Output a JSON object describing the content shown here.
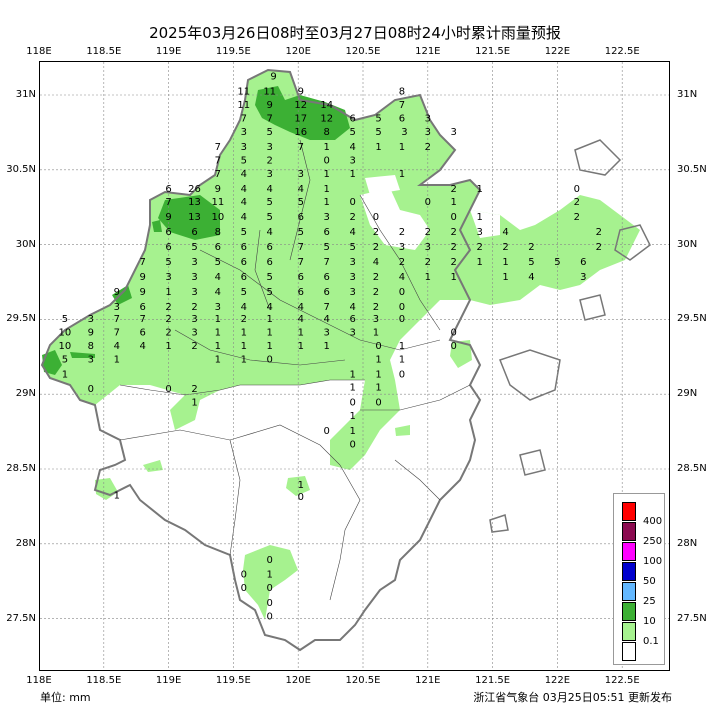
{
  "title": "2025年03月26日08时至03月27日08时24小时累计雨量预报",
  "unit": "单位: mm",
  "issuer": "浙江省气象台 03月25日05:51 更新发布",
  "axes": {
    "top_lon": [
      "118E",
      "118.5E",
      "119E",
      "119.5E",
      "120E",
      "120.5E",
      "121E",
      "121.5E",
      "122E",
      "122.5E"
    ],
    "bottom_lon": [
      "118E",
      "118.5E",
      "119E",
      "119.5E",
      "120E",
      "120.5E",
      "121E",
      "121.5E",
      "122E",
      "122.5E"
    ],
    "lat_left": [
      "31N",
      "30.5N",
      "30N",
      "29.5N",
      "29N",
      "28.5N",
      "28N",
      "27.5N"
    ],
    "lat_right": [
      "31N",
      "30.5N",
      "30N",
      "29.5N",
      "29N",
      "28.5N",
      "28N",
      "27.5N"
    ]
  },
  "legend": [
    {
      "label": "400",
      "color": "#ff0000"
    },
    {
      "label": "250",
      "color": "#8b0a50"
    },
    {
      "label": "100",
      "color": "#ff00ff"
    },
    {
      "label": "50",
      "color": "#0000cd"
    },
    {
      "label": "25",
      "color": "#63b8ff"
    },
    {
      "label": "10",
      "color": "#3cb034"
    },
    {
      "label": "0.1",
      "color": "#a6f28f"
    },
    {
      "label": "",
      "color": "#ffffff"
    }
  ],
  "stations": [
    {
      "lon": 119.81,
      "lat": 31.13,
      "v": "9"
    },
    {
      "lon": 119.58,
      "lat": 31.03,
      "v": "11"
    },
    {
      "lon": 119.78,
      "lat": 31.03,
      "v": "11"
    },
    {
      "lon": 120.02,
      "lat": 31.03,
      "v": "9"
    },
    {
      "lon": 119.58,
      "lat": 30.94,
      "v": "11"
    },
    {
      "lon": 119.78,
      "lat": 30.94,
      "v": "9"
    },
    {
      "lon": 120.02,
      "lat": 30.94,
      "v": "12"
    },
    {
      "lon": 120.22,
      "lat": 30.94,
      "v": "14"
    },
    {
      "lon": 119.58,
      "lat": 30.85,
      "v": "7"
    },
    {
      "lon": 119.78,
      "lat": 30.85,
      "v": "7"
    },
    {
      "lon": 120.02,
      "lat": 30.85,
      "v": "17"
    },
    {
      "lon": 120.22,
      "lat": 30.85,
      "v": "12"
    },
    {
      "lon": 120.42,
      "lat": 30.85,
      "v": "6"
    },
    {
      "lon": 120.62,
      "lat": 30.85,
      "v": "5"
    },
    {
      "lon": 119.58,
      "lat": 30.76,
      "v": "3"
    },
    {
      "lon": 119.78,
      "lat": 30.76,
      "v": "5"
    },
    {
      "lon": 120.02,
      "lat": 30.76,
      "v": "16"
    },
    {
      "lon": 120.22,
      "lat": 30.76,
      "v": "8"
    },
    {
      "lon": 120.42,
      "lat": 30.76,
      "v": "5"
    },
    {
      "lon": 120.62,
      "lat": 30.76,
      "v": "5"
    },
    {
      "lon": 119.38,
      "lat": 30.66,
      "v": "7"
    },
    {
      "lon": 119.58,
      "lat": 30.66,
      "v": "3"
    },
    {
      "lon": 119.78,
      "lat": 30.66,
      "v": "3"
    },
    {
      "lon": 120.02,
      "lat": 30.66,
      "v": "7"
    },
    {
      "lon": 120.22,
      "lat": 30.66,
      "v": "1"
    },
    {
      "lon": 120.42,
      "lat": 30.66,
      "v": "4"
    },
    {
      "lon": 120.62,
      "lat": 30.66,
      "v": "1"
    },
    {
      "lon": 119.38,
      "lat": 30.57,
      "v": "7"
    },
    {
      "lon": 119.58,
      "lat": 30.57,
      "v": "5"
    },
    {
      "lon": 119.78,
      "lat": 30.57,
      "v": "2"
    },
    {
      "lon": 120.22,
      "lat": 30.57,
      "v": "0"
    },
    {
      "lon": 120.42,
      "lat": 30.57,
      "v": "3"
    },
    {
      "lon": 119.38,
      "lat": 30.48,
      "v": "7"
    },
    {
      "lon": 119.58,
      "lat": 30.48,
      "v": "4"
    },
    {
      "lon": 119.78,
      "lat": 30.48,
      "v": "3"
    },
    {
      "lon": 120.02,
      "lat": 30.48,
      "v": "3"
    },
    {
      "lon": 120.22,
      "lat": 30.48,
      "v": "1"
    },
    {
      "lon": 120.42,
      "lat": 30.48,
      "v": "1"
    },
    {
      "lon": 119.0,
      "lat": 30.38,
      "v": "6"
    },
    {
      "lon": 119.2,
      "lat": 30.38,
      "v": "26"
    },
    {
      "lon": 119.38,
      "lat": 30.38,
      "v": "9"
    },
    {
      "lon": 119.58,
      "lat": 30.38,
      "v": "4"
    },
    {
      "lon": 119.78,
      "lat": 30.38,
      "v": "4"
    },
    {
      "lon": 120.02,
      "lat": 30.38,
      "v": "4"
    },
    {
      "lon": 120.22,
      "lat": 30.38,
      "v": "1"
    },
    {
      "lon": 119.0,
      "lat": 30.29,
      "v": "7"
    },
    {
      "lon": 119.2,
      "lat": 30.29,
      "v": "13"
    },
    {
      "lon": 119.38,
      "lat": 30.29,
      "v": "11"
    },
    {
      "lon": 119.58,
      "lat": 30.29,
      "v": "4"
    },
    {
      "lon": 119.78,
      "lat": 30.29,
      "v": "5"
    },
    {
      "lon": 120.02,
      "lat": 30.29,
      "v": "5"
    },
    {
      "lon": 120.22,
      "lat": 30.29,
      "v": "1"
    },
    {
      "lon": 120.42,
      "lat": 30.29,
      "v": "0"
    },
    {
      "lon": 119.0,
      "lat": 30.19,
      "v": "9"
    },
    {
      "lon": 119.2,
      "lat": 30.19,
      "v": "13"
    },
    {
      "lon": 119.38,
      "lat": 30.19,
      "v": "10"
    },
    {
      "lon": 119.58,
      "lat": 30.19,
      "v": "4"
    },
    {
      "lon": 119.78,
      "lat": 30.19,
      "v": "5"
    },
    {
      "lon": 120.02,
      "lat": 30.19,
      "v": "6"
    },
    {
      "lon": 120.22,
      "lat": 30.19,
      "v": "3"
    },
    {
      "lon": 120.42,
      "lat": 30.19,
      "v": "2"
    },
    {
      "lon": 119.0,
      "lat": 30.09,
      "v": "6"
    },
    {
      "lon": 119.2,
      "lat": 30.09,
      "v": "6"
    },
    {
      "lon": 119.38,
      "lat": 30.09,
      "v": "8"
    },
    {
      "lon": 119.58,
      "lat": 30.09,
      "v": "5"
    },
    {
      "lon": 119.78,
      "lat": 30.09,
      "v": "4"
    },
    {
      "lon": 120.02,
      "lat": 30.09,
      "v": "5"
    },
    {
      "lon": 120.22,
      "lat": 30.09,
      "v": "6"
    },
    {
      "lon": 120.42,
      "lat": 30.09,
      "v": "4"
    },
    {
      "lon": 119.0,
      "lat": 29.99,
      "v": "6"
    },
    {
      "lon": 119.2,
      "lat": 29.99,
      "v": "5"
    },
    {
      "lon": 119.38,
      "lat": 29.99,
      "v": "6"
    },
    {
      "lon": 119.58,
      "lat": 29.99,
      "v": "6"
    },
    {
      "lon": 119.78,
      "lat": 29.99,
      "v": "6"
    },
    {
      "lon": 120.02,
      "lat": 29.99,
      "v": "7"
    },
    {
      "lon": 120.22,
      "lat": 29.99,
      "v": "5"
    },
    {
      "lon": 120.42,
      "lat": 29.99,
      "v": "5"
    },
    {
      "lon": 118.8,
      "lat": 29.89,
      "v": "7"
    },
    {
      "lon": 119.0,
      "lat": 29.89,
      "v": "5"
    },
    {
      "lon": 119.2,
      "lat": 29.89,
      "v": "3"
    },
    {
      "lon": 119.38,
      "lat": 29.89,
      "v": "5"
    },
    {
      "lon": 119.58,
      "lat": 29.89,
      "v": "6"
    },
    {
      "lon": 119.78,
      "lat": 29.89,
      "v": "6"
    },
    {
      "lon": 120.02,
      "lat": 29.89,
      "v": "7"
    },
    {
      "lon": 120.22,
      "lat": 29.89,
      "v": "7"
    },
    {
      "lon": 120.42,
      "lat": 29.89,
      "v": "3"
    },
    {
      "lon": 118.8,
      "lat": 29.79,
      "v": "9"
    },
    {
      "lon": 119.0,
      "lat": 29.79,
      "v": "3"
    },
    {
      "lon": 119.2,
      "lat": 29.79,
      "v": "3"
    },
    {
      "lon": 119.38,
      "lat": 29.79,
      "v": "4"
    },
    {
      "lon": 119.58,
      "lat": 29.79,
      "v": "6"
    },
    {
      "lon": 119.78,
      "lat": 29.79,
      "v": "5"
    },
    {
      "lon": 120.02,
      "lat": 29.79,
      "v": "6"
    },
    {
      "lon": 120.22,
      "lat": 29.79,
      "v": "6"
    },
    {
      "lon": 120.42,
      "lat": 29.79,
      "v": "3"
    },
    {
      "lon": 118.6,
      "lat": 29.69,
      "v": "9"
    },
    {
      "lon": 118.8,
      "lat": 29.69,
      "v": "9"
    },
    {
      "lon": 119.0,
      "lat": 29.69,
      "v": "1"
    },
    {
      "lon": 119.2,
      "lat": 29.69,
      "v": "3"
    },
    {
      "lon": 119.38,
      "lat": 29.69,
      "v": "4"
    },
    {
      "lon": 119.58,
      "lat": 29.69,
      "v": "5"
    },
    {
      "lon": 119.78,
      "lat": 29.69,
      "v": "5"
    },
    {
      "lon": 120.02,
      "lat": 29.69,
      "v": "6"
    },
    {
      "lon": 120.22,
      "lat": 29.69,
      "v": "6"
    },
    {
      "lon": 120.42,
      "lat": 29.69,
      "v": "3"
    },
    {
      "lon": 118.6,
      "lat": 29.59,
      "v": "3"
    },
    {
      "lon": 118.8,
      "lat": 29.59,
      "v": "6"
    },
    {
      "lon": 119.0,
      "lat": 29.59,
      "v": "2"
    },
    {
      "lon": 119.2,
      "lat": 29.59,
      "v": "2"
    },
    {
      "lon": 119.38,
      "lat": 29.59,
      "v": "3"
    },
    {
      "lon": 119.58,
      "lat": 29.59,
      "v": "4"
    },
    {
      "lon": 119.78,
      "lat": 29.59,
      "v": "4"
    },
    {
      "lon": 120.02,
      "lat": 29.59,
      "v": "4"
    },
    {
      "lon": 120.22,
      "lat": 29.59,
      "v": "7"
    },
    {
      "lon": 120.42,
      "lat": 29.59,
      "v": "4"
    },
    {
      "lon": 118.2,
      "lat": 29.51,
      "v": "5"
    },
    {
      "lon": 118.4,
      "lat": 29.51,
      "v": "3"
    },
    {
      "lon": 118.6,
      "lat": 29.51,
      "v": "7"
    },
    {
      "lon": 118.8,
      "lat": 29.51,
      "v": "7"
    },
    {
      "lon": 119.0,
      "lat": 29.51,
      "v": "2"
    },
    {
      "lon": 119.2,
      "lat": 29.51,
      "v": "3"
    },
    {
      "lon": 119.38,
      "lat": 29.51,
      "v": "1"
    },
    {
      "lon": 119.58,
      "lat": 29.51,
      "v": "2"
    },
    {
      "lon": 119.78,
      "lat": 29.51,
      "v": "1"
    },
    {
      "lon": 120.02,
      "lat": 29.51,
      "v": "4"
    },
    {
      "lon": 120.22,
      "lat": 29.51,
      "v": "4"
    },
    {
      "lon": 120.42,
      "lat": 29.51,
      "v": "6"
    },
    {
      "lon": 118.2,
      "lat": 29.42,
      "v": "10"
    },
    {
      "lon": 118.4,
      "lat": 29.42,
      "v": "9"
    },
    {
      "lon": 118.6,
      "lat": 29.42,
      "v": "7"
    },
    {
      "lon": 118.8,
      "lat": 29.42,
      "v": "6"
    },
    {
      "lon": 119.0,
      "lat": 29.42,
      "v": "2"
    },
    {
      "lon": 119.2,
      "lat": 29.42,
      "v": "3"
    },
    {
      "lon": 119.38,
      "lat": 29.42,
      "v": "1"
    },
    {
      "lon": 119.58,
      "lat": 29.42,
      "v": "1"
    },
    {
      "lon": 119.78,
      "lat": 29.42,
      "v": "1"
    },
    {
      "lon": 120.02,
      "lat": 29.42,
      "v": "1"
    },
    {
      "lon": 120.22,
      "lat": 29.42,
      "v": "3"
    },
    {
      "lon": 120.42,
      "lat": 29.42,
      "v": "3"
    },
    {
      "lon": 118.2,
      "lat": 29.33,
      "v": "10"
    },
    {
      "lon": 118.4,
      "lat": 29.33,
      "v": "8"
    },
    {
      "lon": 118.6,
      "lat": 29.33,
      "v": "4"
    },
    {
      "lon": 118.8,
      "lat": 29.33,
      "v": "4"
    },
    {
      "lon": 119.0,
      "lat": 29.33,
      "v": "1"
    },
    {
      "lon": 119.2,
      "lat": 29.33,
      "v": "2"
    },
    {
      "lon": 119.38,
      "lat": 29.33,
      "v": "1"
    },
    {
      "lon": 119.58,
      "lat": 29.33,
      "v": "1"
    },
    {
      "lon": 119.78,
      "lat": 29.33,
      "v": "1"
    },
    {
      "lon": 120.02,
      "lat": 29.33,
      "v": "1"
    },
    {
      "lon": 120.22,
      "lat": 29.33,
      "v": "1"
    },
    {
      "lon": 118.2,
      "lat": 29.24,
      "v": "5"
    },
    {
      "lon": 118.4,
      "lat": 29.24,
      "v": "3"
    },
    {
      "lon": 118.6,
      "lat": 29.24,
      "v": "1"
    },
    {
      "lon": 119.38,
      "lat": 29.24,
      "v": "1"
    },
    {
      "lon": 119.58,
      "lat": 29.24,
      "v": "1"
    },
    {
      "lon": 119.78,
      "lat": 29.24,
      "v": "0"
    },
    {
      "lon": 118.2,
      "lat": 29.14,
      "v": "1"
    },
    {
      "lon": 118.4,
      "lat": 29.04,
      "v": "0"
    },
    {
      "lon": 119.0,
      "lat": 29.04,
      "v": "0"
    },
    {
      "lon": 119.2,
      "lat": 29.04,
      "v": "2"
    },
    {
      "lon": 119.2,
      "lat": 28.95,
      "v": "1"
    },
    {
      "lon": 120.6,
      "lat": 29.51,
      "v": "3"
    },
    {
      "lon": 120.6,
      "lat": 29.42,
      "v": "1"
    },
    {
      "lon": 120.62,
      "lat": 29.33,
      "v": "0"
    },
    {
      "lon": 120.62,
      "lat": 29.24,
      "v": "1"
    },
    {
      "lon": 120.62,
      "lat": 29.14,
      "v": "1"
    },
    {
      "lon": 120.62,
      "lat": 29.05,
      "v": "1"
    },
    {
      "lon": 120.62,
      "lat": 28.95,
      "v": "0"
    },
    {
      "lon": 120.8,
      "lat": 29.51,
      "v": "0"
    },
    {
      "lon": 120.8,
      "lat": 29.33,
      "v": "1"
    },
    {
      "lon": 120.8,
      "lat": 29.24,
      "v": "1"
    },
    {
      "lon": 120.8,
      "lat": 29.14,
      "v": "0"
    },
    {
      "lon": 120.42,
      "lat": 28.95,
      "v": "0"
    },
    {
      "lon": 120.42,
      "lat": 28.86,
      "v": "1"
    },
    {
      "lon": 120.42,
      "lat": 28.76,
      "v": "1"
    },
    {
      "lon": 120.42,
      "lat": 28.67,
      "v": "0"
    },
    {
      "lon": 120.22,
      "lat": 28.76,
      "v": "0"
    },
    {
      "lon": 120.42,
      "lat": 29.14,
      "v": "1"
    },
    {
      "lon": 120.42,
      "lat": 29.05,
      "v": "1"
    },
    {
      "lon": 118.6,
      "lat": 28.33,
      "v": "1"
    },
    {
      "lon": 120.02,
      "lat": 28.4,
      "v": "1"
    },
    {
      "lon": 120.02,
      "lat": 28.32,
      "v": "0"
    },
    {
      "lon": 119.78,
      "lat": 27.9,
      "v": "0"
    },
    {
      "lon": 119.58,
      "lat": 27.8,
      "v": "0"
    },
    {
      "lon": 119.78,
      "lat": 27.8,
      "v": "1"
    },
    {
      "lon": 119.58,
      "lat": 27.71,
      "v": "0"
    },
    {
      "lon": 119.78,
      "lat": 27.71,
      "v": "0"
    },
    {
      "lon": 119.78,
      "lat": 27.61,
      "v": "0"
    },
    {
      "lon": 119.78,
      "lat": 27.52,
      "v": "0"
    },
    {
      "lon": 120.8,
      "lat": 31.03,
      "v": "8"
    },
    {
      "lon": 120.8,
      "lat": 30.94,
      "v": "7"
    },
    {
      "lon": 120.8,
      "lat": 30.85,
      "v": "6"
    },
    {
      "lon": 121.0,
      "lat": 30.85,
      "v": "3"
    },
    {
      "lon": 120.82,
      "lat": 30.76,
      "v": "3"
    },
    {
      "lon": 121.0,
      "lat": 30.76,
      "v": "3"
    },
    {
      "lon": 121.2,
      "lat": 30.76,
      "v": "3"
    },
    {
      "lon": 120.8,
      "lat": 30.66,
      "v": "1"
    },
    {
      "lon": 121.0,
      "lat": 30.66,
      "v": "2"
    },
    {
      "lon": 120.8,
      "lat": 30.48,
      "v": "1"
    },
    {
      "lon": 121.2,
      "lat": 30.38,
      "v": "2"
    },
    {
      "lon": 121.4,
      "lat": 30.38,
      "v": "1"
    },
    {
      "lon": 121.0,
      "lat": 30.29,
      "v": "0"
    },
    {
      "lon": 121.2,
      "lat": 30.29,
      "v": "1"
    },
    {
      "lon": 121.2,
      "lat": 30.19,
      "v": "0"
    },
    {
      "lon": 121.4,
      "lat": 30.19,
      "v": "1"
    },
    {
      "lon": 120.6,
      "lat": 30.19,
      "v": "0"
    },
    {
      "lon": 120.6,
      "lat": 30.09,
      "v": "2"
    },
    {
      "lon": 120.6,
      "lat": 29.99,
      "v": "2"
    },
    {
      "lon": 120.6,
      "lat": 29.89,
      "v": "4"
    },
    {
      "lon": 120.6,
      "lat": 29.79,
      "v": "2"
    },
    {
      "lon": 120.6,
      "lat": 29.69,
      "v": "2"
    },
    {
      "lon": 120.6,
      "lat": 29.59,
      "v": "2"
    },
    {
      "lon": 120.8,
      "lat": 30.09,
      "v": "2"
    },
    {
      "lon": 120.8,
      "lat": 29.99,
      "v": "3"
    },
    {
      "lon": 120.8,
      "lat": 29.89,
      "v": "2"
    },
    {
      "lon": 120.8,
      "lat": 29.79,
      "v": "4"
    },
    {
      "lon": 120.8,
      "lat": 29.69,
      "v": "0"
    },
    {
      "lon": 120.8,
      "lat": 29.59,
      "v": "0"
    },
    {
      "lon": 121.0,
      "lat": 30.09,
      "v": "2"
    },
    {
      "lon": 121.0,
      "lat": 29.99,
      "v": "3"
    },
    {
      "lon": 121.0,
      "lat": 29.89,
      "v": "2"
    },
    {
      "lon": 121.0,
      "lat": 29.79,
      "v": "1"
    },
    {
      "lon": 121.2,
      "lat": 30.09,
      "v": "2"
    },
    {
      "lon": 121.2,
      "lat": 29.99,
      "v": "2"
    },
    {
      "lon": 121.2,
      "lat": 29.89,
      "v": "2"
    },
    {
      "lon": 121.2,
      "lat": 29.79,
      "v": "1"
    },
    {
      "lon": 121.4,
      "lat": 30.09,
      "v": "3"
    },
    {
      "lon": 121.4,
      "lat": 29.99,
      "v": "2"
    },
    {
      "lon": 121.4,
      "lat": 29.89,
      "v": "1"
    },
    {
      "lon": 121.6,
      "lat": 30.09,
      "v": "4"
    },
    {
      "lon": 121.6,
      "lat": 29.99,
      "v": "2"
    },
    {
      "lon": 121.6,
      "lat": 29.89,
      "v": "1"
    },
    {
      "lon": 121.6,
      "lat": 29.79,
      "v": "1"
    },
    {
      "lon": 121.8,
      "lat": 29.99,
      "v": "2"
    },
    {
      "lon": 121.8,
      "lat": 29.89,
      "v": "5"
    },
    {
      "lon": 121.8,
      "lat": 29.79,
      "v": "4"
    },
    {
      "lon": 122.0,
      "lat": 29.89,
      "v": "5"
    },
    {
      "lon": 122.2,
      "lat": 29.89,
      "v": "6"
    },
    {
      "lon": 122.2,
      "lat": 29.79,
      "v": "3"
    },
    {
      "lon": 122.32,
      "lat": 30.09,
      "v": "2"
    },
    {
      "lon": 122.32,
      "lat": 29.99,
      "v": "2"
    },
    {
      "lon": 122.15,
      "lat": 30.38,
      "v": "0"
    },
    {
      "lon": 122.15,
      "lat": 30.29,
      "v": "2"
    },
    {
      "lon": 122.15,
      "lat": 30.19,
      "v": "2"
    },
    {
      "lon": 121.2,
      "lat": 29.42,
      "v": "0"
    },
    {
      "lon": 121.2,
      "lat": 29.33,
      "v": "0"
    }
  ]
}
